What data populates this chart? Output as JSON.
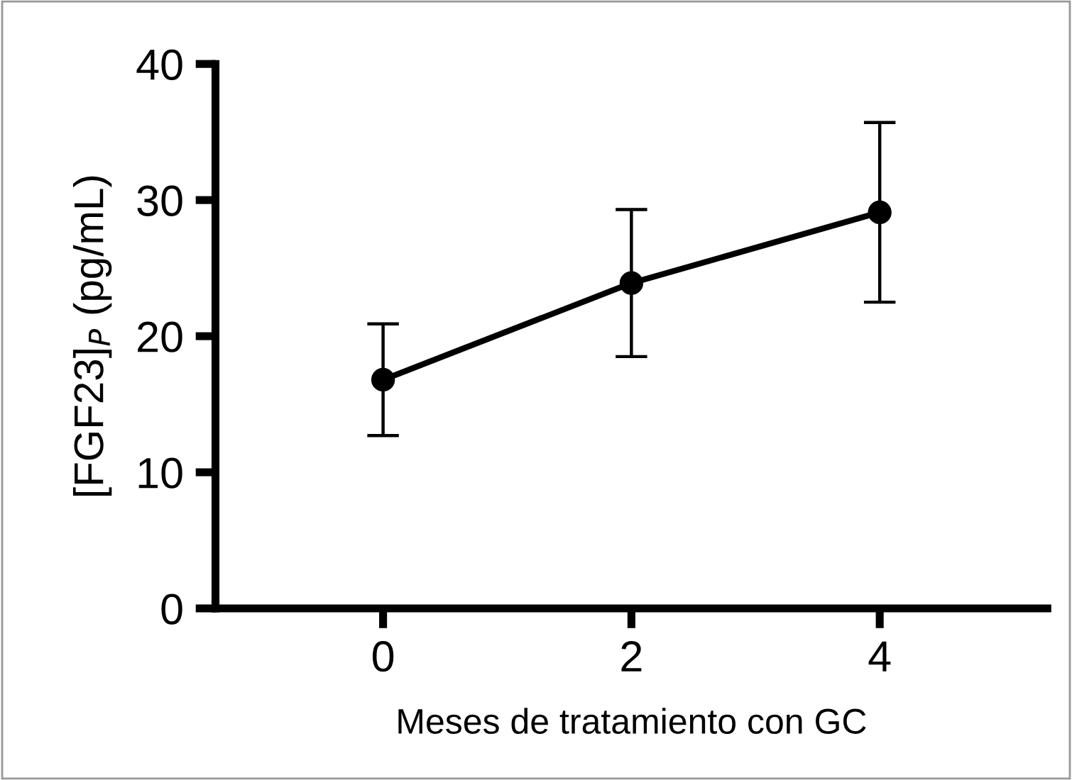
{
  "chart_data": {
    "type": "line",
    "xlabel": "Meses de tratamiento con GC",
    "ylabel": "[FGF23]$_{P}$ (pg/mL)",
    "x": [
      0,
      2,
      4
    ],
    "series": [
      {
        "color": "#000000",
        "values": [
          16.8,
          23.9,
          29.1
        ],
        "errors": [
          4.1,
          5.4,
          6.6
        ]
      }
    ],
    "xlim": [
      -1.35,
      5.35
    ],
    "xticks": [
      0,
      2,
      4
    ],
    "ylim": [
      0,
      40
    ],
    "yticks": [
      0,
      10,
      20,
      30,
      40
    ],
    "marker": "circle",
    "line_style": "solid",
    "grid": false,
    "legend": false
  }
}
